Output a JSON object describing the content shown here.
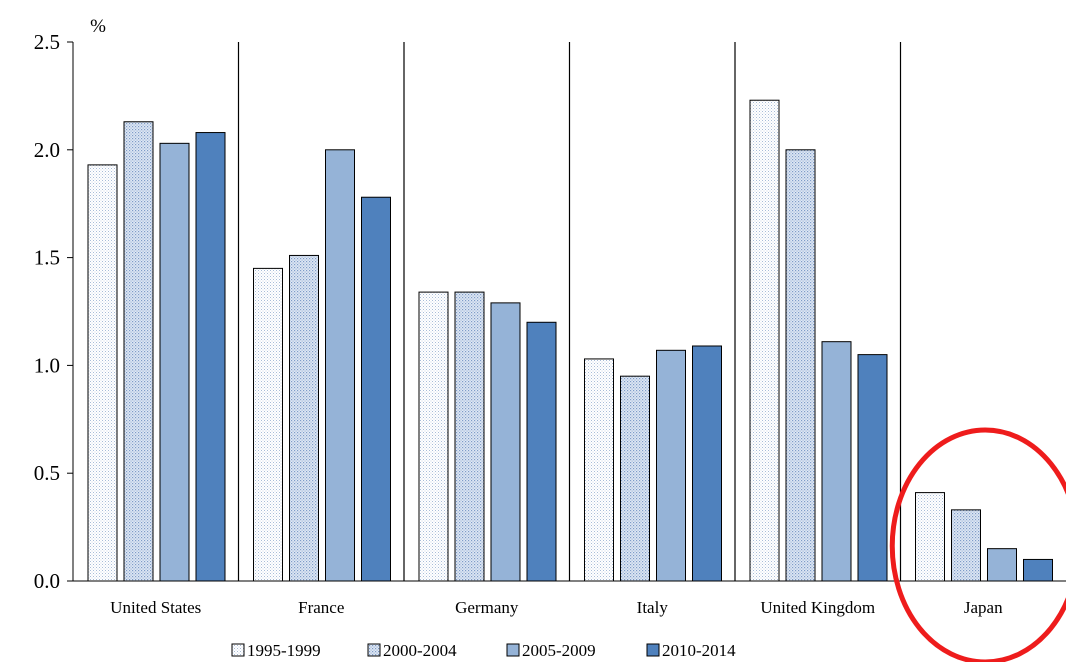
{
  "chart_data": {
    "type": "bar",
    "unit": "%",
    "ylim": [
      0,
      2.5
    ],
    "yticks": [
      "0.0",
      "0.5",
      "1.0",
      "1.5",
      "2.0",
      "2.5"
    ],
    "ytick_values": [
      0,
      0.5,
      1.0,
      1.5,
      2.0,
      2.5
    ],
    "grid": false,
    "legend_position": "bottom",
    "categories": [
      "United States",
      "France",
      "Germany",
      "Italy",
      "United Kingdom",
      "Japan"
    ],
    "series": [
      {
        "name": "1995-1999",
        "values": [
          1.93,
          1.45,
          1.34,
          1.03,
          2.23,
          0.41
        ],
        "color": "#e8eef8",
        "pattern": "dotted-light"
      },
      {
        "name": "2000-2004",
        "values": [
          2.13,
          1.51,
          1.34,
          0.95,
          2.0,
          0.33
        ],
        "color": "#c3d3ea",
        "pattern": "dotted-medium"
      },
      {
        "name": "2005-2009",
        "values": [
          2.03,
          2.0,
          1.29,
          1.07,
          1.11,
          0.15
        ],
        "color": "#95b3d7"
      },
      {
        "name": "2010-2014",
        "values": [
          2.08,
          1.78,
          1.2,
          1.09,
          1.05,
          0.1
        ],
        "color": "#4f81bd"
      }
    ],
    "annotations": [
      {
        "type": "highlight-ellipse",
        "target": "Japan",
        "color": "#ee1c1c"
      }
    ]
  }
}
